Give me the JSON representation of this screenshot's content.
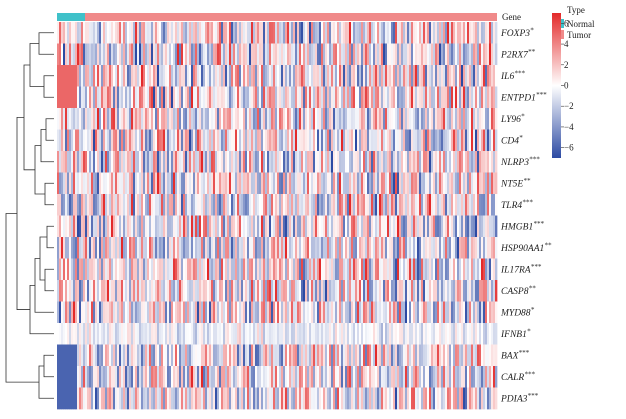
{
  "chart_data": {
    "type": "heatmap",
    "annotation_label": "Gene",
    "genes": [
      {
        "name": "FOXP3",
        "sig": "*"
      },
      {
        "name": "P2RX7",
        "sig": "**"
      },
      {
        "name": "IL6",
        "sig": "***"
      },
      {
        "name": "ENTPD1",
        "sig": "***"
      },
      {
        "name": "LY96",
        "sig": "*"
      },
      {
        "name": "CD4",
        "sig": "*"
      },
      {
        "name": "NLRP3",
        "sig": "***"
      },
      {
        "name": "NT5E",
        "sig": "**"
      },
      {
        "name": "TLR4",
        "sig": "***"
      },
      {
        "name": "HMGB1",
        "sig": "***"
      },
      {
        "name": "HSP90AA1",
        "sig": "**"
      },
      {
        "name": "IL17RA",
        "sig": "***"
      },
      {
        "name": "CASP8",
        "sig": "**"
      },
      {
        "name": "MYD88",
        "sig": "*"
      },
      {
        "name": "IFNB1",
        "sig": "*"
      },
      {
        "name": "BAX",
        "sig": "***"
      },
      {
        "name": "CALR",
        "sig": "***"
      },
      {
        "name": "PDIA3",
        "sig": "***"
      }
    ],
    "samples": {
      "normal": 10,
      "tumor": 210
    },
    "type_legend": {
      "title": "Type",
      "entries": [
        {
          "label": "Normal",
          "color": "#3fc1c9"
        },
        {
          "label": "Tumor",
          "color": "#f08a8a"
        }
      ]
    },
    "color_scale": {
      "ticks": [
        6,
        4,
        2,
        0,
        -2,
        -4,
        -6
      ],
      "tick_labels": [
        "6",
        "4",
        "2",
        "0",
        "−2",
        "−4",
        "−6"
      ],
      "range": [
        -7,
        7
      ],
      "low_color": "#2c4aa3",
      "mid_color": "#ffffff",
      "high_color": "#e32a2a"
    }
  }
}
